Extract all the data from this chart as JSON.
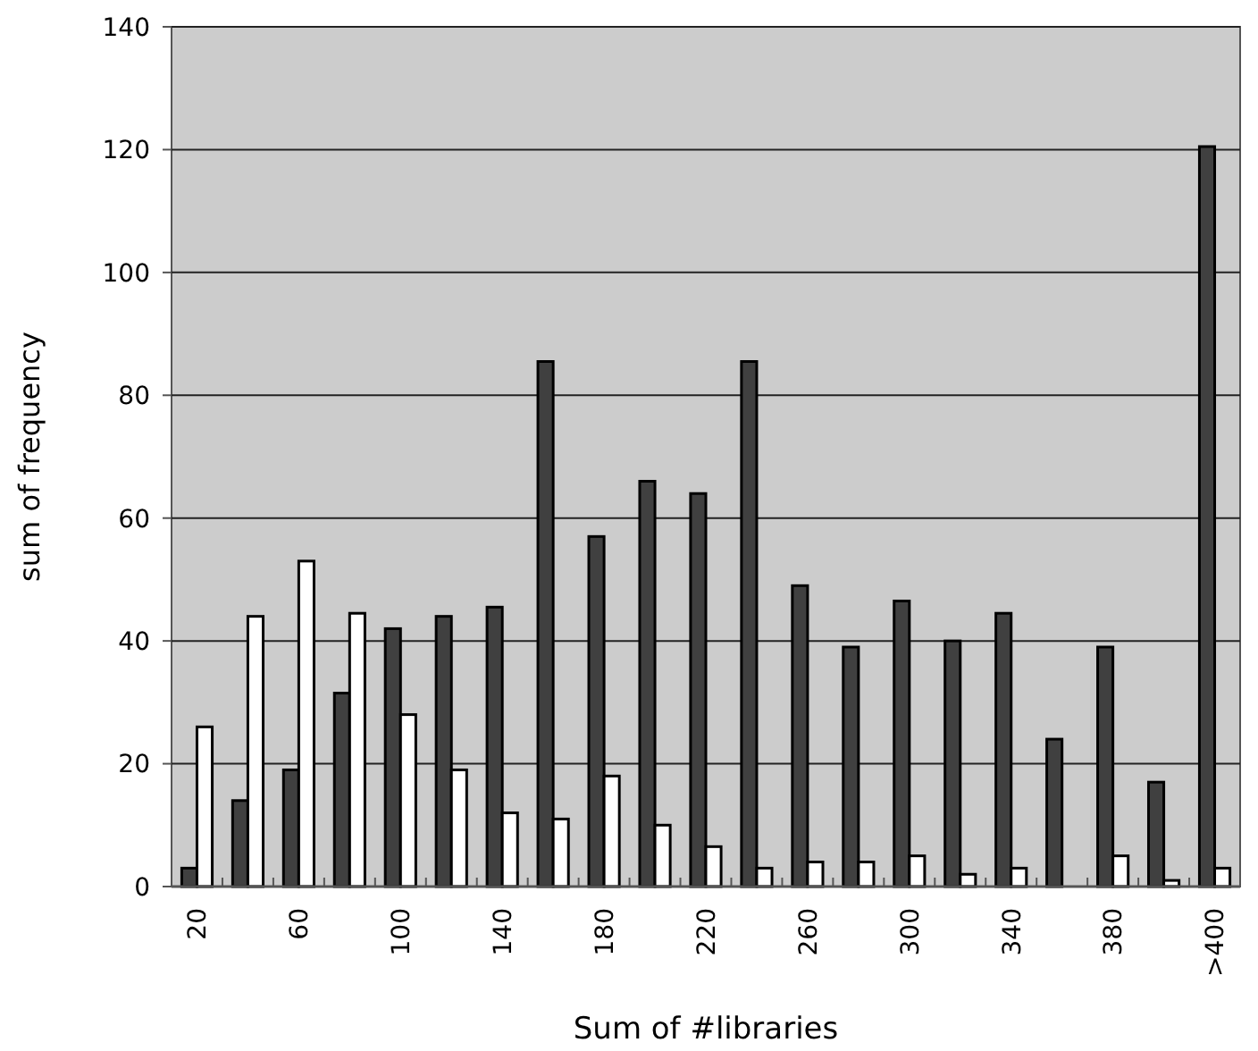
{
  "chart_data": {
    "type": "bar",
    "xlabel": "Sum of #libraries",
    "ylabel": "sum of frequency",
    "categories": [
      "20",
      null,
      "60",
      null,
      "100",
      null,
      "140",
      null,
      "180",
      null,
      "220",
      null,
      "260",
      null,
      "300",
      null,
      "340",
      null,
      "380",
      null,
      ">400"
    ],
    "series": [
      {
        "color": "#404040",
        "values": [
          3,
          14,
          19,
          31.5,
          42,
          44,
          45.5,
          85.5,
          57,
          66,
          64,
          85.5,
          49,
          39,
          46.5,
          40,
          44.5,
          24,
          39,
          17,
          120.5
        ]
      },
      {
        "color": "#ffffff",
        "values": [
          26,
          44,
          53,
          44.5,
          28,
          19,
          12,
          11,
          18,
          10,
          6.5,
          3,
          4,
          4,
          5,
          2,
          3,
          0,
          5,
          1,
          3
        ]
      }
    ],
    "ylim": [
      0,
      140
    ],
    "yticks": [
      0,
      20,
      40,
      60,
      80,
      100,
      120,
      140
    ],
    "grid": "y"
  }
}
